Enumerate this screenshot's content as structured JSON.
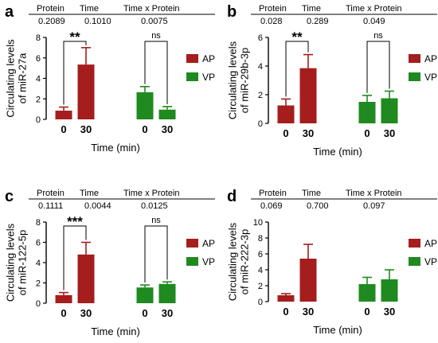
{
  "colors": {
    "AP": "#a51d1d",
    "VP": "#1f8a1f"
  },
  "stats_headers": [
    "Protein",
    "Time",
    "Time x Protein"
  ],
  "chart_data": [
    {
      "panel": "a",
      "type": "bar",
      "stats": {
        "values": [
          "0.2089",
          "0.1010",
          "0.0075"
        ]
      },
      "ylabel": [
        "Circulating levels",
        "of miR-27a"
      ],
      "xlabel": "Time (min)",
      "categories": [
        "0",
        "30"
      ],
      "ylim": [
        0,
        8
      ],
      "yticks": [
        0,
        2,
        4,
        6,
        8
      ],
      "series": [
        {
          "name": "AP",
          "values": [
            0.85,
            5.35
          ],
          "errors": [
            0.35,
            1.65
          ]
        },
        {
          "name": "VP",
          "values": [
            2.65,
            0.95
          ],
          "errors": [
            0.55,
            0.3
          ]
        }
      ],
      "significance": [
        {
          "series": "AP",
          "label": "**"
        },
        {
          "series": "VP",
          "label": "ns"
        }
      ],
      "legend": "right"
    },
    {
      "panel": "b",
      "type": "bar",
      "stats": {
        "values": [
          "0.028",
          "0.289",
          "0.049"
        ]
      },
      "ylabel": [
        "Circulating levels",
        "of miR-29b-3p"
      ],
      "xlabel": "Time (min)",
      "categories": [
        "0",
        "30"
      ],
      "ylim": [
        0,
        6
      ],
      "yticks": [
        0,
        2,
        4,
        6
      ],
      "series": [
        {
          "name": "AP",
          "values": [
            1.25,
            3.85
          ],
          "errors": [
            0.45,
            0.95
          ]
        },
        {
          "name": "VP",
          "values": [
            1.5,
            1.75
          ],
          "errors": [
            0.45,
            0.5
          ]
        }
      ],
      "significance": [
        {
          "series": "AP",
          "label": "**"
        },
        {
          "series": "VP",
          "label": "ns"
        }
      ],
      "legend": "right"
    },
    {
      "panel": "c",
      "type": "bar",
      "stats": {
        "values": [
          "0.1111",
          "0.0044",
          "0.0125"
        ]
      },
      "ylabel": [
        "Circulating levels",
        "of miR-122-5p"
      ],
      "xlabel": "Time (min)",
      "categories": [
        "0",
        "30"
      ],
      "ylim": [
        0,
        8
      ],
      "yticks": [
        0,
        2,
        4,
        6,
        8
      ],
      "series": [
        {
          "name": "AP",
          "values": [
            0.8,
            4.8
          ],
          "errors": [
            0.25,
            1.2
          ]
        },
        {
          "name": "VP",
          "values": [
            1.55,
            1.9
          ],
          "errors": [
            0.25,
            0.2
          ]
        }
      ],
      "significance": [
        {
          "series": "AP",
          "label": "***"
        },
        {
          "series": "VP",
          "label": "ns"
        }
      ],
      "legend": "right"
    },
    {
      "panel": "d",
      "type": "bar",
      "stats": {
        "values": [
          "0.069",
          "0.700",
          "0.097"
        ]
      },
      "ylabel": [
        "Circulating levels",
        "of miR-222-3p"
      ],
      "xlabel": "Time (min)",
      "categories": [
        "0",
        "30"
      ],
      "ylim": [
        0,
        10
      ],
      "yticks": [
        0,
        2,
        4,
        6,
        8,
        10
      ],
      "series": [
        {
          "name": "AP",
          "values": [
            0.8,
            5.4
          ],
          "errors": [
            0.2,
            1.8
          ]
        },
        {
          "name": "VP",
          "values": [
            2.2,
            2.8
          ],
          "errors": [
            0.85,
            1.2
          ]
        }
      ],
      "significance": [],
      "legend": "right"
    }
  ]
}
